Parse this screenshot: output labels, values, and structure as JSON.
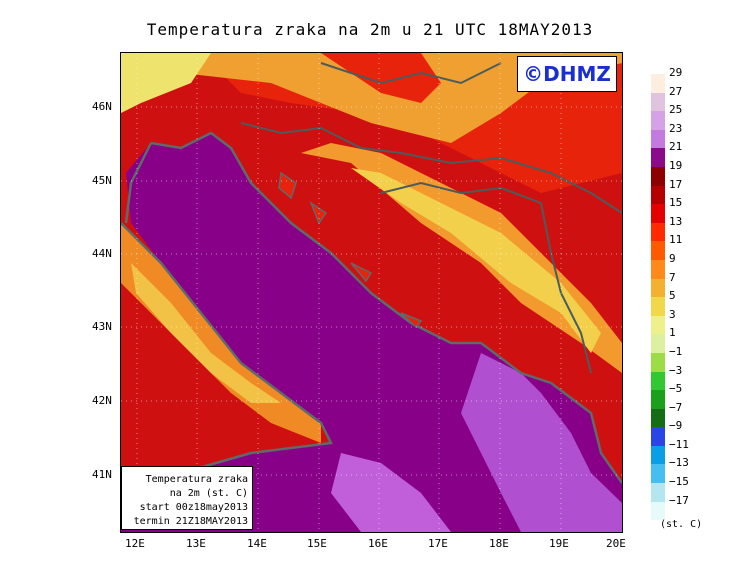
{
  "title": "Temperatura zraka na 2m u 21 UTC 18MAY2013",
  "logo": "©DHMZ",
  "info": {
    "line1": "Temperatura zraka",
    "line2": "na 2m (st. C)",
    "line3": "start 00z18may2013",
    "line4": "termin 21Z18MAY2013"
  },
  "axes": {
    "lat_labels": [
      "46N",
      "45N",
      "44N",
      "43N",
      "42N",
      "41N"
    ],
    "lon_labels": [
      "12E",
      "13E",
      "14E",
      "15E",
      "16E",
      "17E",
      "18E",
      "19E",
      "20E"
    ]
  },
  "legend": {
    "units": "(st. C)",
    "labels": [
      "29",
      "27",
      "25",
      "23",
      "21",
      "19",
      "17",
      "15",
      "13",
      "11",
      "9",
      "7",
      "5",
      "3",
      "1",
      "−1",
      "−3",
      "−5",
      "−7",
      "−9",
      "−11",
      "−13",
      "−15",
      "−17"
    ],
    "colors": [
      "#fdeee0",
      "#e0c3df",
      "#d6a2e6",
      "#c37be0",
      "#8a0a8a",
      "#8e0000",
      "#b40000",
      "#e40000",
      "#ff2a00",
      "#ff5a00",
      "#ff8a1a",
      "#f4b030",
      "#f0d84a",
      "#eef08a",
      "#dcf0a0",
      "#9cdc46",
      "#32c832",
      "#1aa01a",
      "#156e15",
      "#2846e6",
      "#0a9ee6",
      "#46bef0",
      "#b4e6f0",
      "#e6fafa"
    ]
  },
  "colors": {
    "sea": "#880088",
    "sea_light": "#c15fdb",
    "coast": "#5f6a6a",
    "border": "#4b5c5c"
  }
}
